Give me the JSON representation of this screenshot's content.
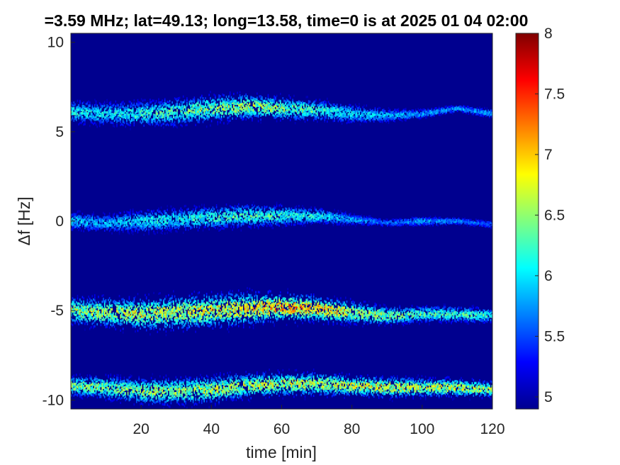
{
  "chart_data": {
    "type": "heatmap",
    "title": "=3.59 MHz;  lat=49.13; long=13.58, time=0 is at 2025 01 04 02:00",
    "xlabel": "time [min]",
    "ylabel": "Δf [Hz]",
    "xlim": [
      0,
      120
    ],
    "ylim": [
      -10.5,
      10.5
    ],
    "xticks": [
      20,
      40,
      60,
      80,
      100,
      120
    ],
    "xtick_labels": [
      "20",
      "40",
      "60",
      "80",
      "100",
      "120"
    ],
    "yticks": [
      10,
      5,
      0,
      -5,
      -10
    ],
    "ytick_labels": [
      "10",
      "5",
      "0",
      "-5",
      "-10"
    ],
    "colorbar": {
      "colormap": "jet",
      "clim": [
        4.9,
        8.0
      ],
      "ticks": [
        8,
        7.5,
        7,
        6.5,
        6,
        5.5,
        5
      ],
      "tick_labels": [
        "8",
        "7.5",
        "7",
        "6.5",
        "6",
        "5.5",
        "5"
      ]
    },
    "grid": false,
    "background_color": "#00008f",
    "bands": [
      {
        "center_t": [
          0,
          10,
          20,
          30,
          40,
          50,
          60,
          70,
          80,
          90,
          100,
          110,
          120
        ],
        "center_f": [
          6.1,
          6.0,
          6.0,
          6.1,
          6.3,
          6.4,
          6.3,
          6.2,
          6.0,
          5.9,
          6.0,
          6.3,
          6.0
        ],
        "width_hz": [
          0.5,
          0.5,
          0.55,
          0.6,
          0.6,
          0.55,
          0.5,
          0.45,
          0.4,
          0.3,
          0.2,
          0.15,
          0.2
        ],
        "peak_value": [
          6.4,
          6.3,
          6.5,
          6.6,
          6.8,
          7.0,
          6.8,
          6.6,
          6.3,
          6.1,
          6.0,
          6.0,
          6.0
        ]
      },
      {
        "center_t": [
          0,
          10,
          20,
          30,
          40,
          50,
          60,
          70,
          80,
          90,
          100,
          110,
          120
        ],
        "center_f": [
          0.0,
          -0.1,
          0.0,
          0.1,
          0.2,
          0.3,
          0.3,
          0.3,
          0.1,
          -0.1,
          0.0,
          0.0,
          -0.2
        ],
        "width_hz": [
          0.4,
          0.4,
          0.5,
          0.5,
          0.5,
          0.5,
          0.45,
          0.35,
          0.25,
          0.15,
          0.2,
          0.15,
          0.15
        ],
        "peak_value": [
          6.2,
          6.1,
          6.3,
          6.4,
          6.5,
          6.6,
          6.5,
          6.4,
          6.0,
          5.8,
          6.0,
          5.9,
          5.8
        ]
      },
      {
        "center_t": [
          0,
          10,
          20,
          30,
          40,
          50,
          60,
          70,
          80,
          90,
          100,
          110,
          120
        ],
        "center_f": [
          -5.0,
          -5.1,
          -5.2,
          -5.1,
          -5.0,
          -4.9,
          -4.8,
          -4.9,
          -5.1,
          -5.3,
          -5.2,
          -5.2,
          -5.3
        ],
        "width_hz": [
          0.6,
          0.65,
          0.7,
          0.75,
          0.75,
          0.7,
          0.6,
          0.55,
          0.5,
          0.4,
          0.35,
          0.35,
          0.3
        ],
        "peak_value": [
          6.9,
          7.0,
          7.1,
          7.1,
          7.2,
          7.3,
          7.6,
          7.5,
          7.1,
          6.8,
          6.6,
          6.6,
          6.5
        ]
      },
      {
        "center_t": [
          0,
          10,
          20,
          30,
          40,
          50,
          60,
          70,
          80,
          90,
          100,
          110,
          120
        ],
        "center_f": [
          -9.2,
          -9.3,
          -9.5,
          -9.5,
          -9.4,
          -9.2,
          -9.1,
          -9.1,
          -9.2,
          -9.3,
          -9.3,
          -9.3,
          -9.4
        ],
        "width_hz": [
          0.45,
          0.5,
          0.55,
          0.6,
          0.6,
          0.55,
          0.5,
          0.5,
          0.45,
          0.45,
          0.4,
          0.4,
          0.35
        ],
        "peak_value": [
          6.8,
          6.8,
          6.9,
          6.9,
          7.0,
          7.0,
          7.1,
          7.1,
          7.1,
          7.2,
          7.0,
          7.1,
          6.9
        ]
      }
    ]
  }
}
